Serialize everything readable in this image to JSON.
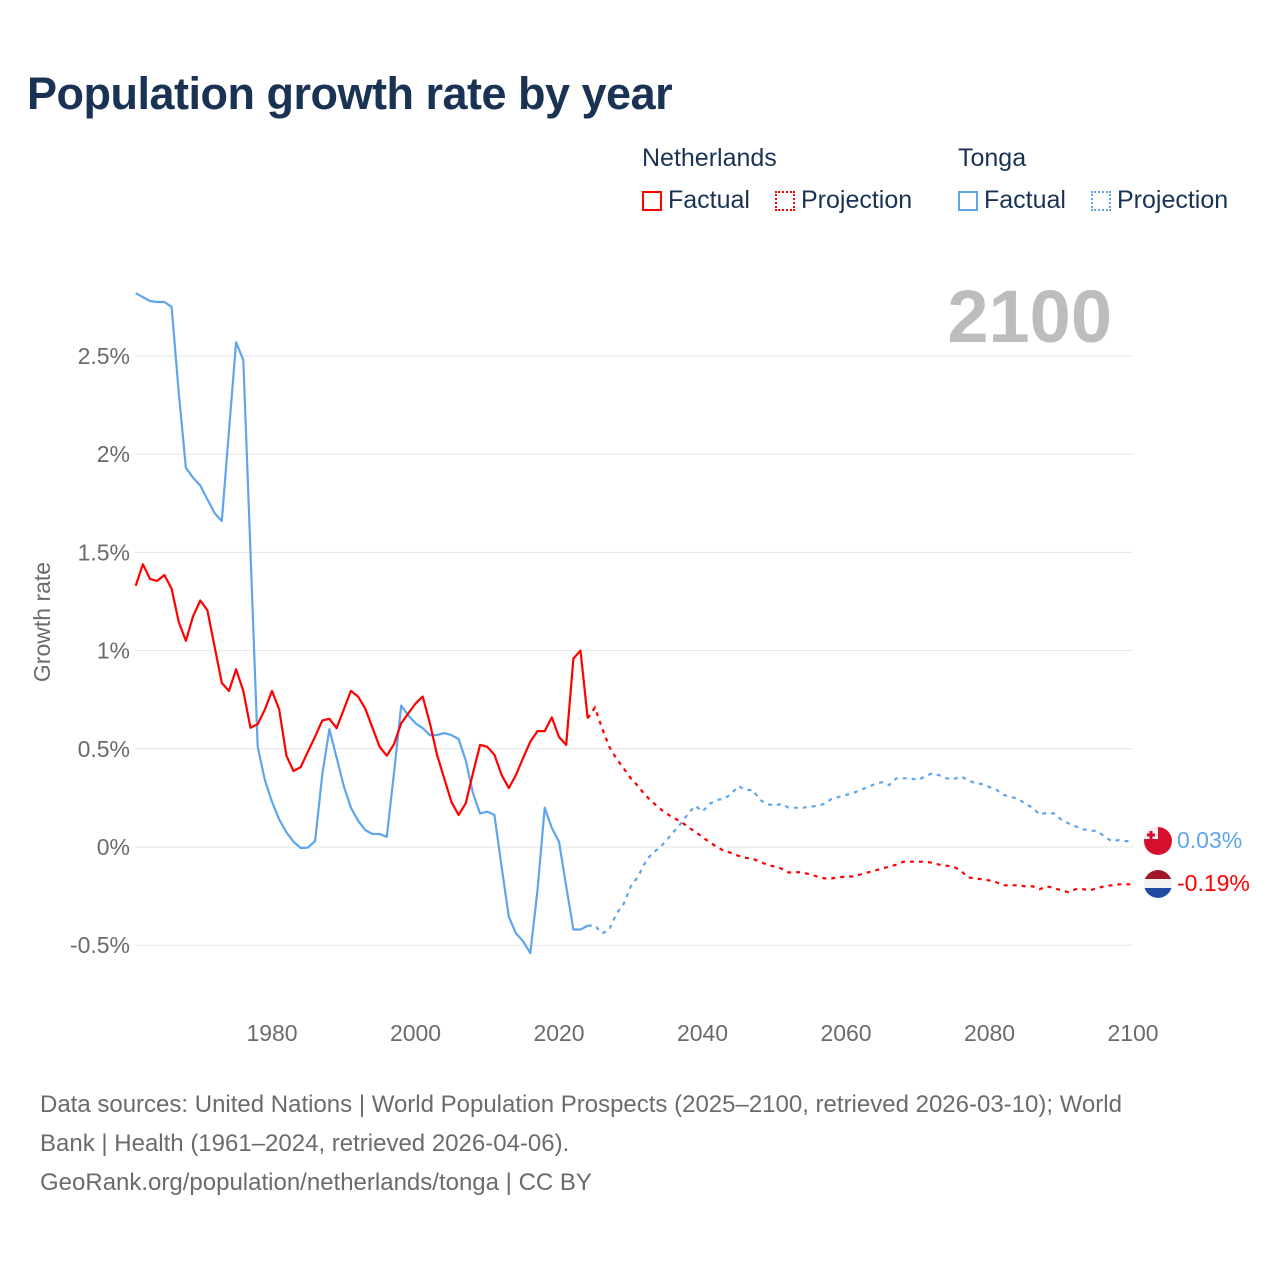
{
  "title": "Population growth rate by year",
  "legend": {
    "groups": [
      {
        "country": "Netherlands",
        "factual": "Factual",
        "projection": "Projection",
        "color": "#ff0000"
      },
      {
        "country": "Tonga",
        "factual": "Factual",
        "projection": "Projection",
        "color": "#5ea5ec"
      }
    ]
  },
  "year_label": "2100",
  "footer": {
    "line1": "Data sources: United Nations | World Population Prospects (2025–2100, retrieved 2026-03-10); World",
    "line2": "Bank | Health (1961–2024, retrieved 2026-04-06).",
    "line3": "GeoRank.org/population/netherlands/tonga | CC BY"
  },
  "chart_data": {
    "type": "line",
    "title": "Population growth rate by year",
    "xlabel": "",
    "ylabel": "Growth rate",
    "xlim": [
      1961,
      2100
    ],
    "ylim": [
      -0.65,
      2.85
    ],
    "x_ticks": [
      1980,
      2000,
      2020,
      2040,
      2060,
      2080,
      2100
    ],
    "x_tick_labels": [
      "1980",
      "2000",
      "2020",
      "2040",
      "2060",
      "2080",
      "2100"
    ],
    "y_ticks": [
      -0.5,
      0,
      0.5,
      1,
      1.5,
      2,
      2.5
    ],
    "y_tick_labels": [
      "-0.5%",
      "0%",
      "0.5%",
      "1%",
      "1.5%",
      "2%",
      "2.5%"
    ],
    "grid": true,
    "legend_position": "top-right",
    "factual_start": 1961,
    "projection_start": 2024,
    "series": [
      {
        "name": "Tonga",
        "color": "#5ea5ec",
        "end_label": "0.03%",
        "factual": [
          2.82,
          2.8,
          2.78,
          2.775,
          2.775,
          2.75,
          2.31,
          1.93,
          1.88,
          1.84,
          1.77,
          1.7,
          1.66,
          2.12,
          2.57,
          2.48,
          1.5,
          0.51,
          0.34,
          0.23,
          0.14,
          0.075,
          0.027,
          -0.005,
          -0.003,
          0.03,
          0.37,
          0.6,
          0.455,
          0.31,
          0.2,
          0.134,
          0.086,
          0.066,
          0.066,
          0.052,
          0.377,
          0.72,
          0.67,
          0.63,
          0.605,
          0.57,
          0.57,
          0.58,
          0.57,
          0.55,
          0.44,
          0.275,
          0.17,
          0.18,
          0.163,
          -0.1,
          -0.355,
          -0.44,
          -0.48,
          -0.54,
          -0.22,
          0.2,
          0.097,
          0.027,
          -0.2,
          -0.42,
          -0.42,
          -0.4
        ],
        "projection": [
          -0.4,
          -0.4,
          -0.44,
          -0.42,
          -0.34,
          -0.29,
          -0.2,
          -0.15,
          -0.08,
          -0.03,
          -0.005,
          0.035,
          0.078,
          0.12,
          0.17,
          0.21,
          0.18,
          0.22,
          0.24,
          0.245,
          0.27,
          0.31,
          0.29,
          0.29,
          0.24,
          0.22,
          0.21,
          0.22,
          0.2,
          0.2,
          0.2,
          0.205,
          0.21,
          0.22,
          0.245,
          0.255,
          0.265,
          0.275,
          0.29,
          0.305,
          0.32,
          0.33,
          0.315,
          0.35,
          0.35,
          0.35,
          0.34,
          0.36,
          0.375,
          0.365,
          0.35,
          0.345,
          0.36,
          0.34,
          0.325,
          0.32,
          0.305,
          0.29,
          0.265,
          0.255,
          0.245,
          0.22,
          0.2,
          0.165,
          0.175,
          0.17,
          0.14,
          0.12,
          0.105,
          0.09,
          0.085,
          0.08,
          0.055,
          0.03,
          0.035,
          0.03,
          0.03
        ]
      },
      {
        "name": "Netherlands",
        "color": "#ff0000",
        "end_label": "-0.19%",
        "factual": [
          1.33,
          1.44,
          1.365,
          1.355,
          1.385,
          1.315,
          1.145,
          1.05,
          1.175,
          1.255,
          1.205,
          1.02,
          0.835,
          0.795,
          0.905,
          0.795,
          0.607,
          0.626,
          0.7,
          0.795,
          0.7,
          0.465,
          0.387,
          0.407,
          0.485,
          0.562,
          0.644,
          0.653,
          0.605,
          0.7,
          0.795,
          0.766,
          0.704,
          0.607,
          0.51,
          0.465,
          0.524,
          0.63,
          0.68,
          0.73,
          0.766,
          0.63,
          0.47,
          0.35,
          0.23,
          0.163,
          0.223,
          0.375,
          0.52,
          0.51,
          0.47,
          0.367,
          0.3,
          0.367,
          0.453,
          0.536,
          0.59,
          0.59,
          0.66,
          0.56,
          0.52,
          0.96,
          1.0,
          0.655
        ],
        "projection": [
          0.655,
          0.71,
          0.605,
          0.51,
          0.45,
          0.4,
          0.35,
          0.31,
          0.265,
          0.23,
          0.197,
          0.17,
          0.147,
          0.13,
          0.1,
          0.078,
          0.05,
          0.025,
          0.0,
          -0.02,
          -0.03,
          -0.045,
          -0.055,
          -0.06,
          -0.075,
          -0.09,
          -0.1,
          -0.11,
          -0.13,
          -0.128,
          -0.13,
          -0.14,
          -0.15,
          -0.16,
          -0.16,
          -0.155,
          -0.15,
          -0.15,
          -0.14,
          -0.13,
          -0.12,
          -0.11,
          -0.1,
          -0.09,
          -0.075,
          -0.075,
          -0.075,
          -0.075,
          -0.08,
          -0.09,
          -0.095,
          -0.1,
          -0.12,
          -0.155,
          -0.16,
          -0.165,
          -0.17,
          -0.18,
          -0.195,
          -0.195,
          -0.195,
          -0.2,
          -0.2,
          -0.215,
          -0.2,
          -0.21,
          -0.22,
          -0.23,
          -0.215,
          -0.215,
          -0.22,
          -0.21,
          -0.2,
          -0.195,
          -0.19,
          -0.19,
          -0.19
        ]
      }
    ]
  }
}
